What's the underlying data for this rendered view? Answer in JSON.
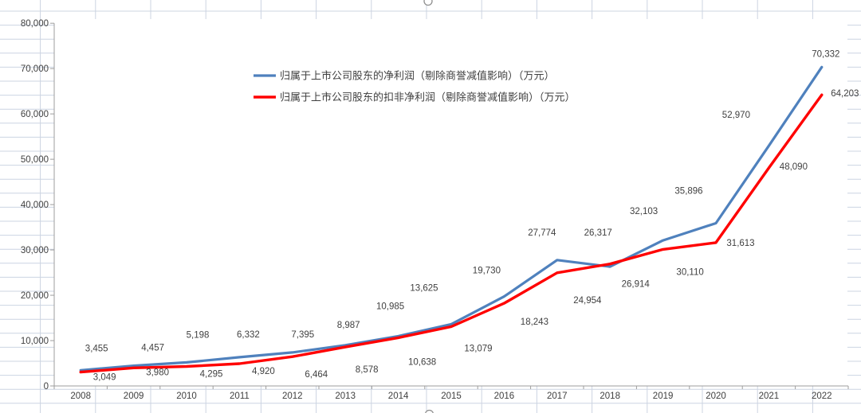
{
  "chart_data": {
    "type": "line",
    "title": "",
    "categories": [
      "2008",
      "2009",
      "2010",
      "2011",
      "2012",
      "2013",
      "2014",
      "2015",
      "2016",
      "2017",
      "2018",
      "2019",
      "2020",
      "2021",
      "2022"
    ],
    "series": [
      {
        "name": "归属于上市公司股东的净利润（剔除商誉减值影响）（万元）",
        "color": "#4f81bd",
        "values": [
          3455,
          4457,
          5198,
          6332,
          7395,
          8987,
          10985,
          13625,
          19730,
          27774,
          26317,
          32103,
          35896,
          52970,
          70332
        ],
        "labels": [
          "3,455",
          "4,457",
          "5,198",
          "6,332",
          "7,395",
          "8,987",
          "10,985",
          "13,625",
          "19,730",
          "27,774",
          "26,317",
          "32,103",
          "35,896",
          "52,970",
          "70,332"
        ],
        "label_offsets": [
          [
            20,
            -28
          ],
          [
            24,
            -23
          ],
          [
            14,
            -35
          ],
          [
            11,
            -29
          ],
          [
            13,
            -23
          ],
          [
            4,
            -26
          ],
          [
            -10,
            -38
          ],
          [
            -34,
            -46
          ],
          [
            -22,
            -33
          ],
          [
            -19,
            -35
          ],
          [
            -15,
            -43
          ],
          [
            -24,
            -37
          ],
          [
            -34,
            -41
          ],
          [
            -41,
            -39
          ],
          [
            5,
            -17
          ]
        ]
      },
      {
        "name": "归属于上市公司股东的扣非净利润（剔除商誉减值影响）（万元）",
        "color": "#ff0000",
        "values": [
          3049,
          3980,
          4295,
          4920,
          6464,
          8578,
          10638,
          13079,
          18243,
          24954,
          26914,
          30110,
          31613,
          48090,
          64203
        ],
        "labels": [
          "3,049",
          "3,980",
          "4,295",
          "4,920",
          "6,464",
          "8,578",
          "10,638",
          "13,079",
          "18,243",
          "24,954",
          "26,914",
          "30,110",
          "31,613",
          "48,090",
          "64,203"
        ],
        "label_offsets": [
          [
            30,
            6
          ],
          [
            30,
            5
          ],
          [
            31,
            9
          ],
          [
            30,
            9
          ],
          [
            30,
            22
          ],
          [
            27,
            28
          ],
          [
            30,
            30
          ],
          [
            34,
            27
          ],
          [
            38,
            23
          ],
          [
            38,
            34
          ],
          [
            32,
            25
          ],
          [
            34,
            28
          ],
          [
            31,
            0
          ],
          [
            31,
            -2
          ],
          [
            29,
            -2
          ]
        ]
      }
    ],
    "ylim": [
      0,
      80000
    ],
    "ytick_step": 10000,
    "ytick_labels": [
      "0",
      "10,000",
      "20,000",
      "30,000",
      "40,000",
      "50,000",
      "60,000",
      "70,000",
      "80,000"
    ],
    "grid": false,
    "legend_position": "inside-plot upper-left, stacked vertically"
  },
  "theme": {
    "plot_bg": "#ffffff",
    "sheet_grid_color": "#ccd4e2",
    "axis_color": "#9d9d9d",
    "text_color": "#3f3f3f",
    "handle_stroke": "#8f8f8f"
  }
}
